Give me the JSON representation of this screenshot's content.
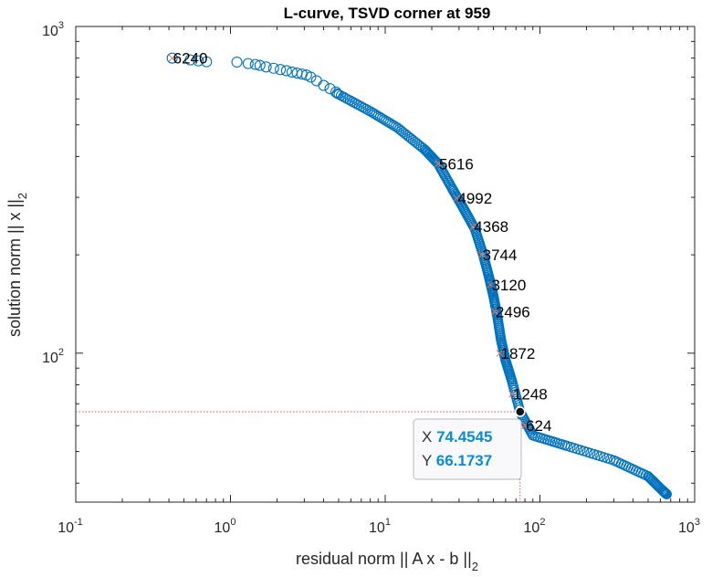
{
  "chart_data": {
    "type": "scatter",
    "title": "L-curve, TSVD corner at 959",
    "xlabel_main": "residual norm || A x - b ||",
    "xlabel_sub": "2",
    "ylabel_main": "solution norm || x ||",
    "ylabel_sub": "2",
    "xscale": "log",
    "yscale": "log",
    "xlim": [
      0.1,
      1000
    ],
    "ylim": [
      35,
      1000
    ],
    "x_ticks": [
      {
        "base": "10",
        "exp": "-1",
        "value": 0.1
      },
      {
        "base": "10",
        "exp": "0",
        "value": 1
      },
      {
        "base": "10",
        "exp": "1",
        "value": 10
      },
      {
        "base": "10",
        "exp": "2",
        "value": 100
      },
      {
        "base": "10",
        "exp": "3",
        "value": 1000
      }
    ],
    "y_ticks": [
      {
        "base": "10",
        "exp": "2",
        "value": 100
      },
      {
        "base": "10",
        "exp": "3",
        "value": 1000
      }
    ],
    "grid": false,
    "series": [
      {
        "marker": "circle",
        "color": "#0072BD",
        "curve": [
          [
            0.42,
            800
          ],
          [
            0.6,
            790
          ],
          [
            1.0,
            770
          ],
          [
            1.5,
            745
          ],
          [
            2.5,
            720
          ],
          [
            3.6,
            670
          ],
          [
            5.0,
            620
          ],
          [
            8.0,
            550
          ],
          [
            12.0,
            490
          ],
          [
            18.0,
            420
          ],
          [
            22.0,
            380
          ],
          [
            27.0,
            320
          ],
          [
            32.0,
            278
          ],
          [
            38.0,
            240
          ],
          [
            43.0,
            200
          ],
          [
            47.0,
            170
          ],
          [
            50.0,
            150
          ],
          [
            53.0,
            130
          ],
          [
            56.0,
            110
          ],
          [
            60.0,
            95
          ],
          [
            66.0,
            82
          ],
          [
            74.4545,
            66.1737
          ],
          [
            90.0,
            56
          ],
          [
            150.0,
            52
          ],
          [
            300.0,
            47
          ],
          [
            500.0,
            42
          ],
          [
            620.0,
            38
          ],
          [
            660.0,
            37
          ]
        ],
        "sparse_points": [
          [
            0.42,
            800
          ],
          [
            0.55,
            790
          ],
          [
            0.62,
            785
          ],
          [
            0.7,
            780
          ],
          [
            1.1,
            778
          ],
          [
            1.3,
            770
          ],
          [
            1.45,
            765
          ],
          [
            1.55,
            760
          ],
          [
            1.7,
            752
          ],
          [
            1.9,
            745
          ],
          [
            2.1,
            738
          ],
          [
            2.3,
            732
          ],
          [
            2.5,
            725
          ],
          [
            2.7,
            720
          ],
          [
            2.9,
            715
          ],
          [
            3.1,
            710
          ],
          [
            3.3,
            700
          ],
          [
            3.6,
            682
          ],
          [
            4.0,
            660
          ],
          [
            4.4,
            645
          ],
          [
            4.8,
            630
          ]
        ]
      }
    ],
    "labeled_points": [
      {
        "label": "6240",
        "x": 0.42,
        "y": 800
      },
      {
        "label": "5616",
        "x": 22.0,
        "y": 380
      },
      {
        "label": "4992",
        "x": 29.0,
        "y": 298
      },
      {
        "label": "4368",
        "x": 37.0,
        "y": 244
      },
      {
        "label": "3744",
        "x": 42.0,
        "y": 200
      },
      {
        "label": "3120",
        "x": 48.0,
        "y": 162
      },
      {
        "label": "2496",
        "x": 51.0,
        "y": 134
      },
      {
        "label": "1872",
        "x": 55.0,
        "y": 100
      },
      {
        "label": "1248",
        "x": 66.0,
        "y": 75
      },
      {
        "label": "624",
        "x": 80.0,
        "y": 60
      }
    ],
    "corner": {
      "x": 74.4545,
      "y": 66.1737
    },
    "datatip": {
      "x_label": "X",
      "x_value": "74.4545",
      "y_label": "Y",
      "y_value": "66.1737"
    },
    "colors": {
      "series": "#0072BD",
      "marker_x": "#E0745A",
      "guide": "#D9534F",
      "axis": "#262626"
    }
  }
}
